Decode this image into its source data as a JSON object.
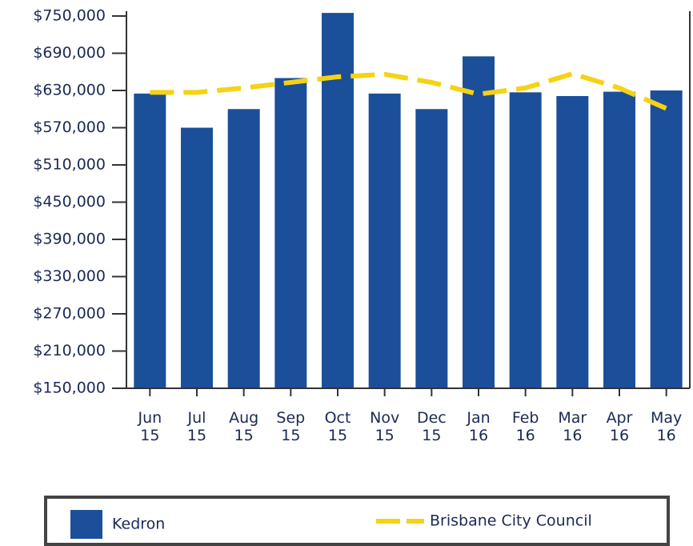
{
  "chart_data": {
    "type": "bar",
    "categories": [
      "Jun 15",
      "Jul 15",
      "Aug 15",
      "Sep 15",
      "Oct 15",
      "Nov 15",
      "Dec 15",
      "Jan 16",
      "Feb 16",
      "Mar 16",
      "Apr 16",
      "May 16"
    ],
    "series": [
      {
        "name": "Kedron",
        "type": "bar",
        "color": "#1b4f9a",
        "values": [
          625000,
          570000,
          600000,
          650000,
          755000,
          625000,
          600000,
          685000,
          627000,
          621000,
          628000,
          630000
        ]
      },
      {
        "name": "Brisbane City Council",
        "type": "line",
        "color": "#f5d216",
        "values": [
          627000,
          627000,
          634000,
          643000,
          652000,
          656000,
          643000,
          624000,
          634000,
          657000,
          634000,
          601000
        ]
      }
    ],
    "ylim": [
      150000,
      750000
    ],
    "yticks": [
      {
        "value": 150000,
        "label": "$150,000"
      },
      {
        "value": 210000,
        "label": "$210,000"
      },
      {
        "value": 270000,
        "label": "$270,000"
      },
      {
        "value": 330000,
        "label": "$330,000"
      },
      {
        "value": 390000,
        "label": "$390,000"
      },
      {
        "value": 450000,
        "label": "$450,000"
      },
      {
        "value": 510000,
        "label": "$510,000"
      },
      {
        "value": 570000,
        "label": "$570,000"
      },
      {
        "value": 630000,
        "label": "$630,000"
      },
      {
        "value": 690000,
        "label": "$690,000"
      },
      {
        "value": 750000,
        "label": "$750,000"
      }
    ],
    "legend": "bottom"
  }
}
